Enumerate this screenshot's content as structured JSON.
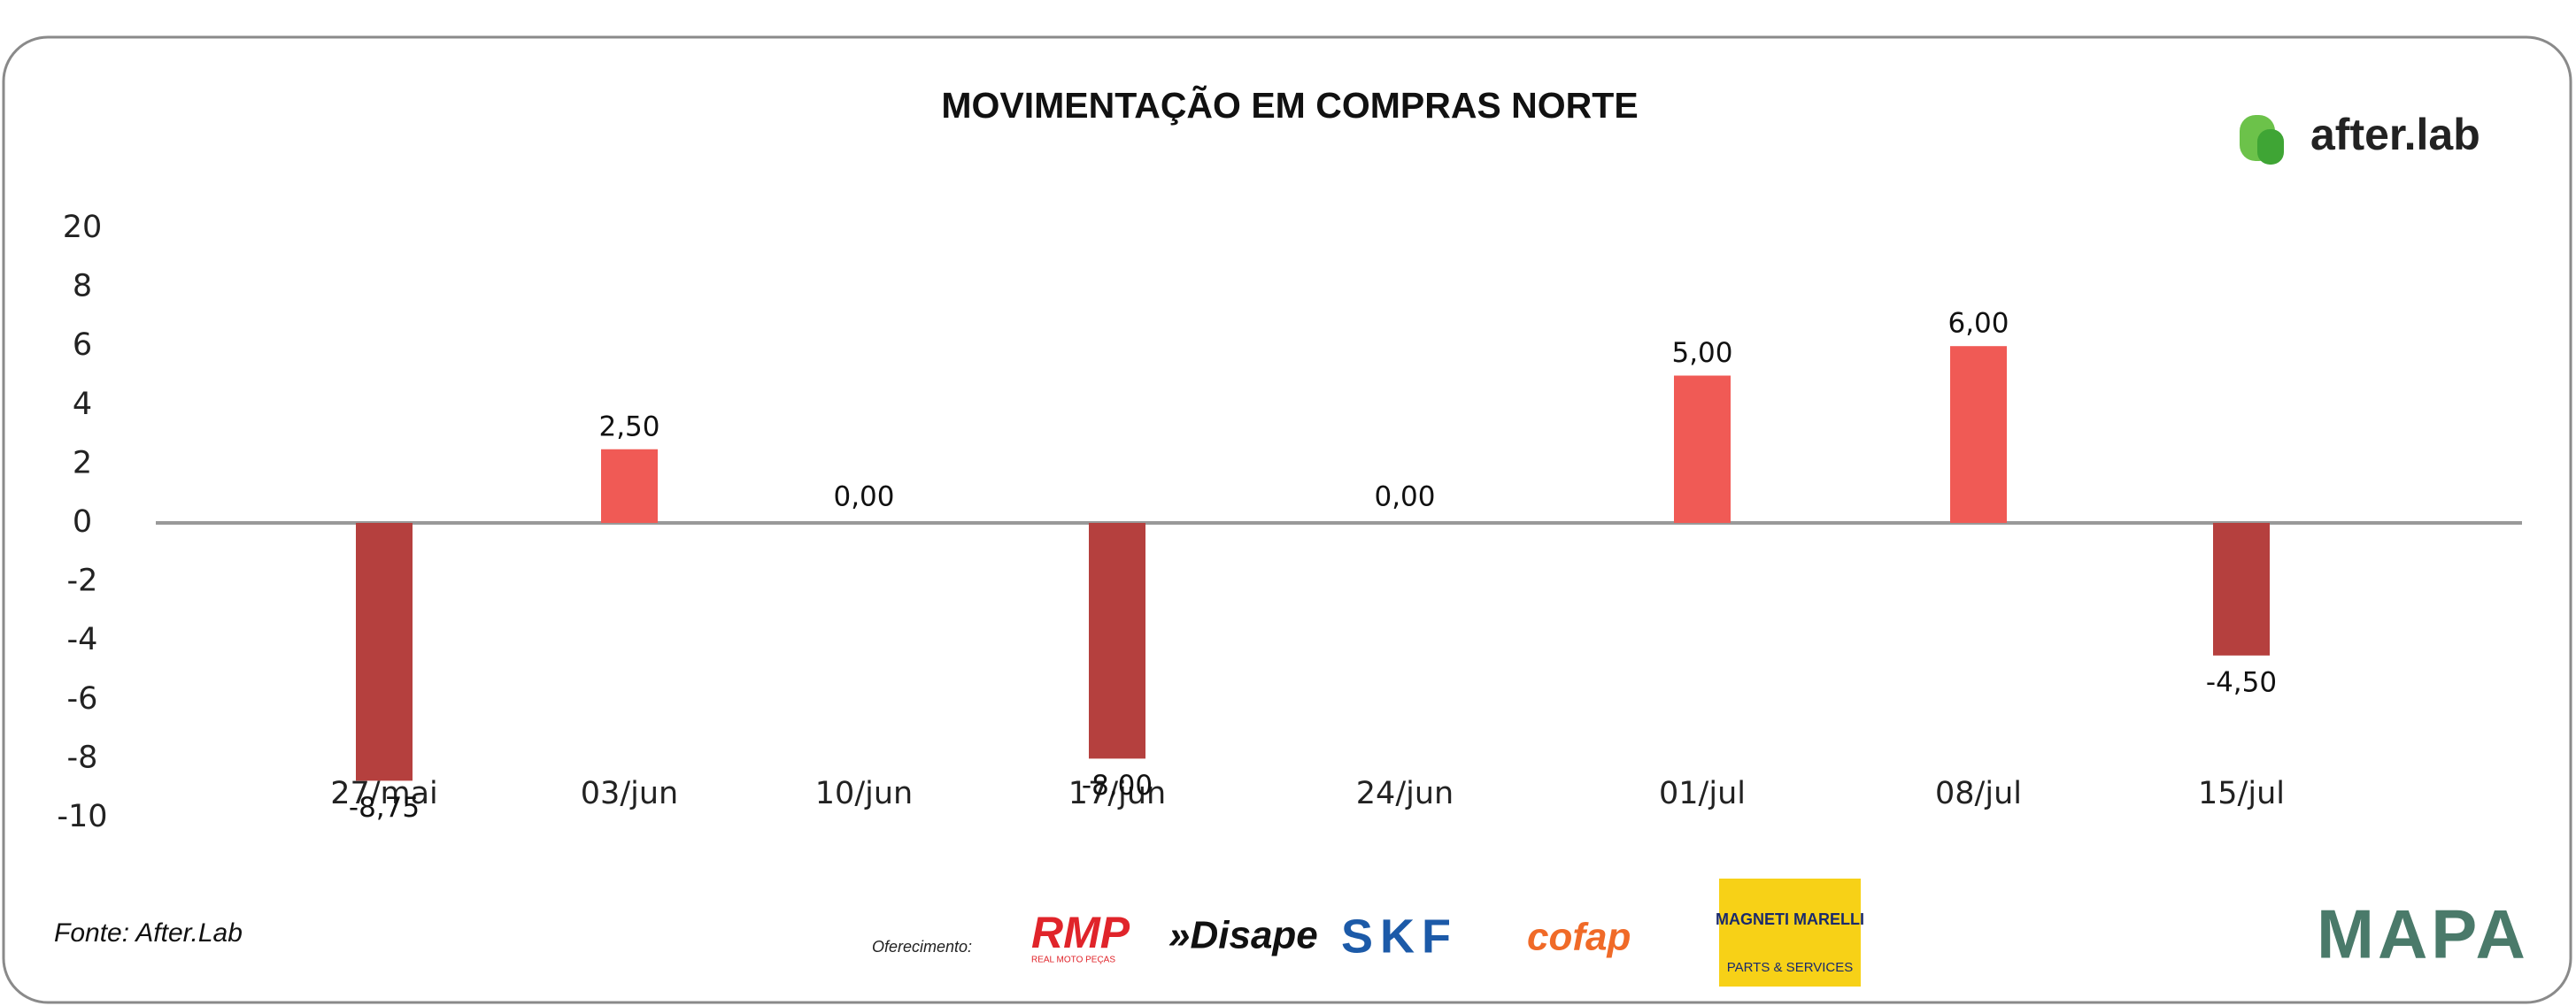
{
  "chart_data": {
    "type": "bar",
    "title": "MOVIMENTAÇÃO EM COMPRAS NORTE",
    "categories": [
      "27/mai",
      "03/jun",
      "10/jun",
      "17/jun",
      "24/jun",
      "01/jul",
      "08/jul",
      "15/jul"
    ],
    "values": [
      -8.75,
      2.5,
      0,
      -8,
      0,
      5,
      6,
      -4.5
    ],
    "value_labels": [
      "-8,75",
      "2,50",
      "0,00",
      "-8,00",
      "0,00",
      "5,00",
      "6,00",
      "-4,50"
    ],
    "color": "#f05a55",
    "negative_color": "#b5403e",
    "ylim": [
      -10,
      20
    ],
    "yticks": [
      20,
      8,
      6,
      4,
      2,
      0,
      -2,
      -4,
      -6,
      -8,
      -10
    ],
    "grid": false
  },
  "brand": "after.lab",
  "source": "Fonte: After.Lab",
  "sponsor_label": "Oferecimento:",
  "sponsors": [
    "RMP",
    "REAL MOTO PEÇAS",
    "»Disape",
    "SKF",
    "cofap",
    "MAGNETI MARELLI",
    "PARTS & SERVICES",
    "MAPA"
  ]
}
